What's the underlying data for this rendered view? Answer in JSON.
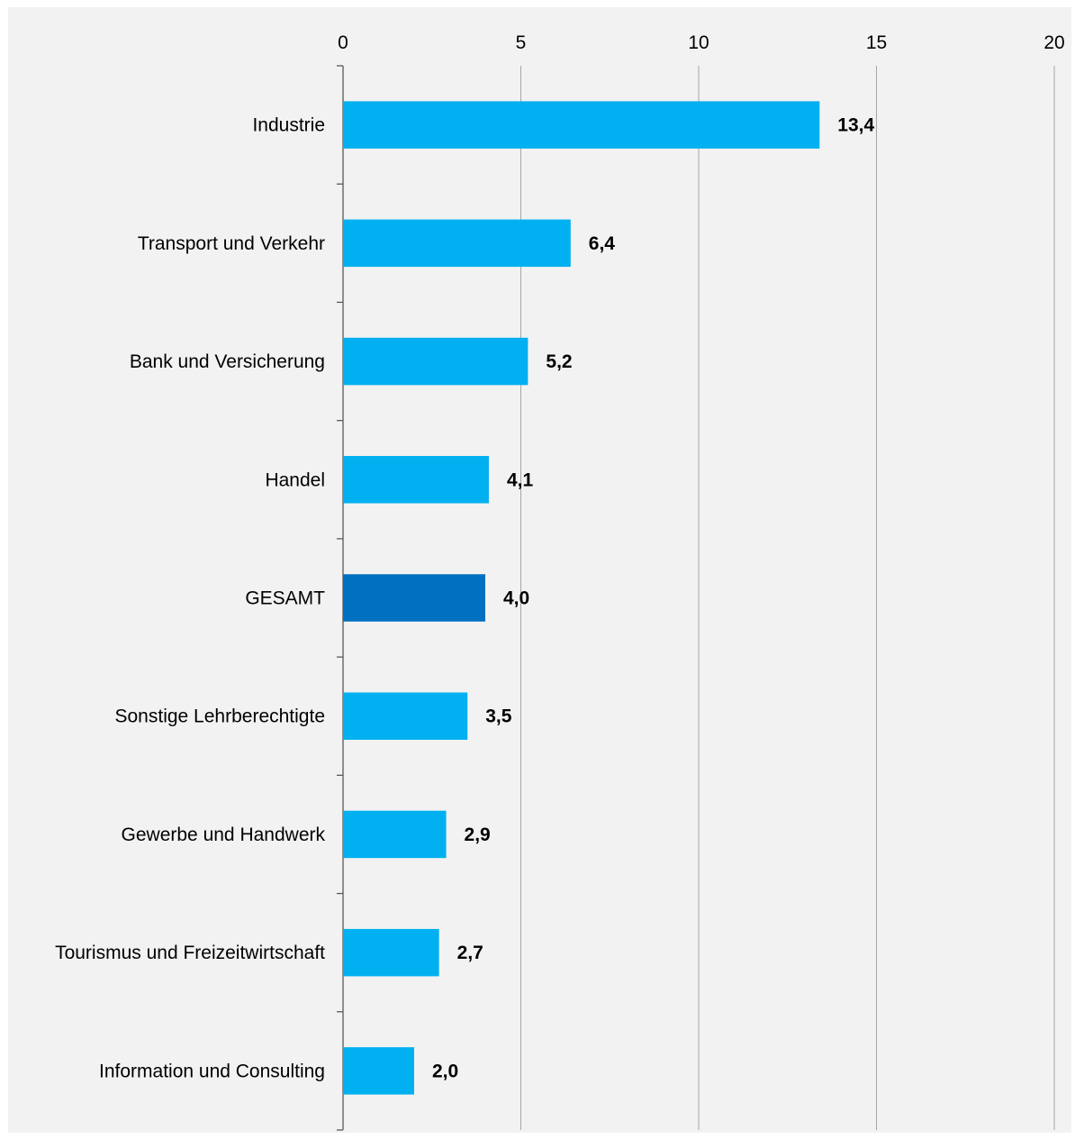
{
  "chart_data": {
    "type": "bar",
    "orientation": "horizontal",
    "title": "",
    "xlabel": "",
    "ylabel": "",
    "xlim": [
      0,
      20
    ],
    "xticks": [
      0,
      5,
      10,
      15,
      20
    ],
    "xtick_labels": [
      "0",
      "5",
      "10",
      "15",
      "20"
    ],
    "x_axis_position": "top",
    "grid": "vertical",
    "legend": "none",
    "categories": [
      "Industrie",
      "Transport und Verkehr",
      "Bank und Versicherung",
      "Handel",
      "GESAMT",
      "Sonstige Lehrberechtigte",
      "Gewerbe und Handwerk",
      "Tourismus und Freizeitwirtschaft",
      "Information und Consulting"
    ],
    "values": [
      13.4,
      6.4,
      5.2,
      4.1,
      4.0,
      3.5,
      2.9,
      2.7,
      2.0
    ],
    "value_labels": [
      "13,4",
      "6,4",
      "5,2",
      "4,1",
      "4,0",
      "3,5",
      "2,9",
      "2,7",
      "2,0"
    ],
    "highlight_category": "GESAMT",
    "colors": {
      "bar": "#00B0F0",
      "highlight": "#0070C0",
      "background": "#F2F2F2",
      "grid": "#A6A6A6",
      "axis": "#595959",
      "text": "#000000"
    }
  }
}
